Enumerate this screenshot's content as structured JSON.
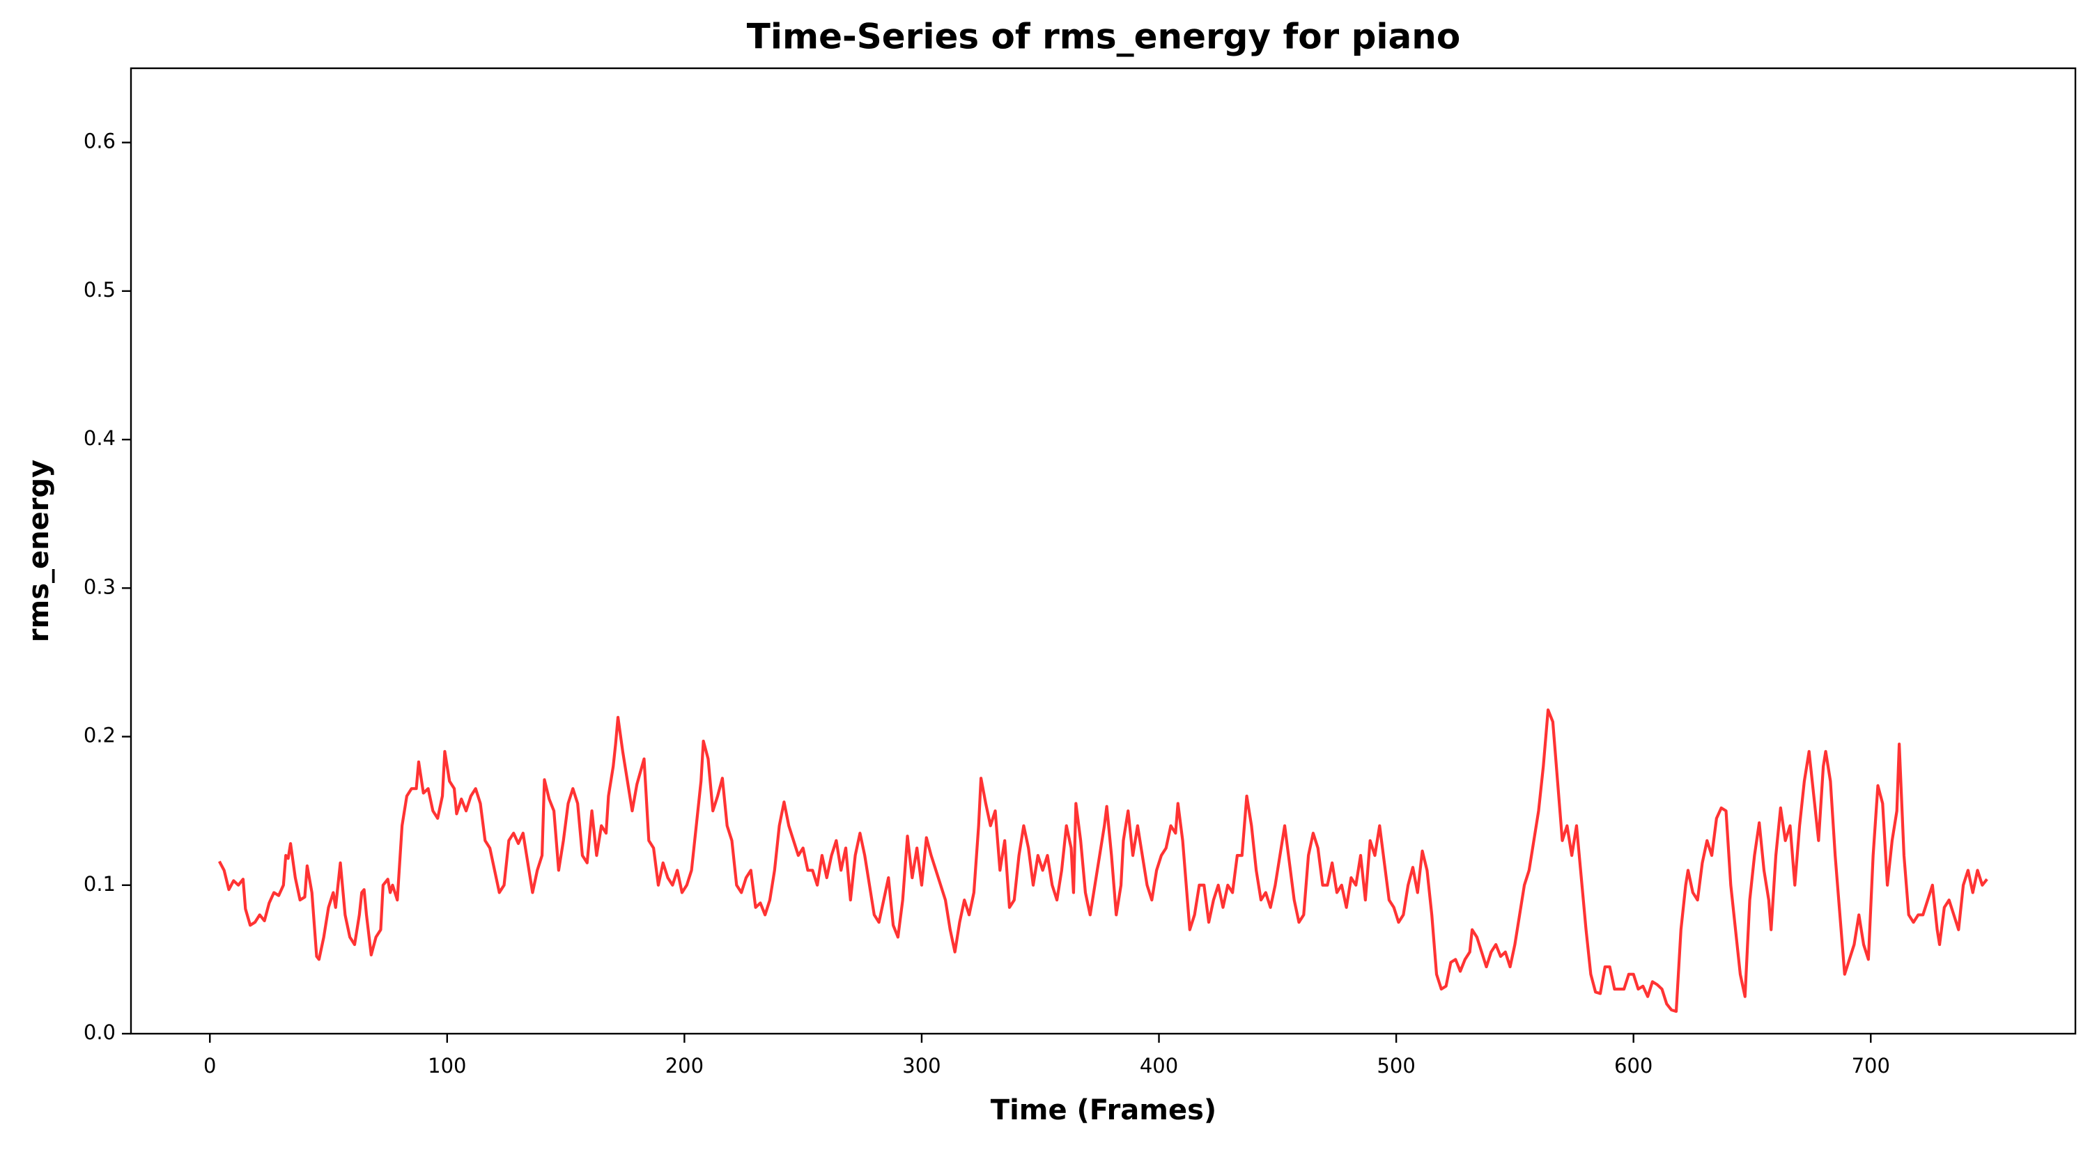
{
  "chart_data": {
    "type": "line",
    "title": "Time-Series of rms_energy for piano",
    "x_label": "Time (Frames)",
    "y_label": "rms_energy",
    "color": "#ff3333",
    "x": [
      4,
      6,
      8,
      10,
      12,
      14,
      15,
      17,
      19,
      21,
      23,
      25,
      27,
      29,
      31,
      32,
      33,
      34,
      36,
      38,
      40,
      41,
      43,
      45,
      46,
      48,
      50,
      52,
      53,
      54,
      55,
      57,
      59,
      61,
      63,
      64,
      65,
      66,
      68,
      70,
      72,
      73,
      75,
      76,
      77,
      79,
      81,
      83,
      85,
      87,
      88,
      90,
      92,
      94,
      96,
      98,
      99,
      101,
      103,
      104,
      106,
      108,
      110,
      112,
      114,
      116,
      118,
      120,
      122,
      124,
      126,
      128,
      130,
      132,
      134,
      136,
      138,
      140,
      141,
      143,
      145,
      147,
      149,
      151,
      153,
      155,
      157,
      159,
      161,
      163,
      165,
      167,
      168,
      170,
      171,
      172,
      174,
      176,
      178,
      180,
      183,
      185,
      187,
      189,
      191,
      193,
      195,
      197,
      199,
      201,
      203,
      205,
      207,
      208,
      210,
      212,
      214,
      216,
      218,
      220,
      222,
      224,
      226,
      228,
      230,
      232,
      234,
      236,
      238,
      240,
      242,
      244,
      246,
      248,
      250,
      252,
      254,
      256,
      258,
      260,
      262,
      264,
      266,
      268,
      270,
      272,
      274,
      276,
      278,
      280,
      282,
      284,
      286,
      288,
      290,
      292,
      294,
      296,
      298,
      300,
      302,
      304,
      306,
      308,
      310,
      312,
      314,
      316,
      318,
      320,
      322,
      324,
      325,
      327,
      329,
      331,
      333,
      335,
      337,
      339,
      341,
      343,
      345,
      347,
      349,
      351,
      353,
      355,
      357,
      359,
      361,
      363,
      364,
      365,
      367,
      369,
      371,
      373,
      375,
      377,
      378,
      380,
      382,
      384,
      385,
      387,
      389,
      391,
      393,
      395,
      397,
      399,
      401,
      403,
      405,
      407,
      408,
      410,
      412,
      413,
      415,
      417,
      419,
      421,
      423,
      425,
      427,
      429,
      431,
      433,
      435,
      437,
      439,
      441,
      443,
      445,
      447,
      449,
      451,
      453,
      455,
      457,
      459,
      461,
      463,
      465,
      467,
      469,
      471,
      473,
      475,
      477,
      479,
      481,
      483,
      485,
      487,
      489,
      491,
      493,
      495,
      497,
      499,
      501,
      503,
      505,
      507,
      509,
      511,
      513,
      515,
      517,
      519,
      521,
      523,
      525,
      527,
      529,
      531,
      532,
      534,
      536,
      538,
      540,
      542,
      544,
      546,
      548,
      550,
      552,
      554,
      556,
      558,
      560,
      562,
      564,
      566,
      568,
      570,
      572,
      574,
      576,
      578,
      580,
      582,
      584,
      586,
      588,
      590,
      592,
      594,
      596,
      598,
      600,
      602,
      604,
      606,
      608,
      610,
      612,
      614,
      616,
      618,
      620,
      622,
      623,
      625,
      627,
      629,
      631,
      633,
      635,
      637,
      639,
      641,
      643,
      645,
      647,
      649,
      651,
      653,
      655,
      657,
      658,
      660,
      662,
      664,
      666,
      668,
      670,
      672,
      674,
      676,
      678,
      680,
      681,
      683,
      685,
      687,
      689,
      691,
      693,
      695,
      697,
      699,
      701,
      703,
      705,
      707,
      709,
      711,
      712,
      714,
      716,
      718,
      720,
      722,
      724,
      726,
      728,
      729,
      731,
      733,
      735,
      737,
      739,
      741,
      743,
      745,
      747,
      749
    ],
    "values": [
      0.116,
      0.11,
      0.097,
      0.103,
      0.1,
      0.104,
      0.084,
      0.073,
      0.075,
      0.08,
      0.076,
      0.088,
      0.095,
      0.093,
      0.1,
      0.12,
      0.118,
      0.128,
      0.105,
      0.09,
      0.092,
      0.113,
      0.095,
      0.052,
      0.05,
      0.065,
      0.085,
      0.095,
      0.085,
      0.1,
      0.115,
      0.08,
      0.065,
      0.06,
      0.08,
      0.095,
      0.097,
      0.08,
      0.053,
      0.065,
      0.07,
      0.1,
      0.104,
      0.095,
      0.1,
      0.09,
      0.14,
      0.16,
      0.165,
      0.165,
      0.183,
      0.162,
      0.165,
      0.15,
      0.145,
      0.16,
      0.19,
      0.17,
      0.165,
      0.148,
      0.158,
      0.15,
      0.16,
      0.165,
      0.155,
      0.13,
      0.125,
      0.11,
      0.095,
      0.1,
      0.13,
      0.135,
      0.128,
      0.135,
      0.115,
      0.095,
      0.11,
      0.12,
      0.171,
      0.158,
      0.15,
      0.11,
      0.13,
      0.155,
      0.165,
      0.155,
      0.12,
      0.115,
      0.15,
      0.12,
      0.14,
      0.135,
      0.16,
      0.18,
      0.195,
      0.213,
      0.19,
      0.17,
      0.15,
      0.168,
      0.185,
      0.13,
      0.125,
      0.1,
      0.115,
      0.105,
      0.1,
      0.11,
      0.095,
      0.1,
      0.11,
      0.14,
      0.17,
      0.197,
      0.185,
      0.15,
      0.16,
      0.172,
      0.14,
      0.13,
      0.1,
      0.095,
      0.105,
      0.11,
      0.085,
      0.088,
      0.08,
      0.09,
      0.11,
      0.14,
      0.156,
      0.14,
      0.13,
      0.12,
      0.125,
      0.11,
      0.11,
      0.1,
      0.12,
      0.105,
      0.12,
      0.13,
      0.11,
      0.125,
      0.09,
      0.12,
      0.135,
      0.12,
      0.1,
      0.08,
      0.075,
      0.09,
      0.105,
      0.073,
      0.065,
      0.09,
      0.133,
      0.105,
      0.125,
      0.1,
      0.132,
      0.12,
      0.11,
      0.1,
      0.09,
      0.07,
      0.055,
      0.075,
      0.09,
      0.08,
      0.095,
      0.14,
      0.172,
      0.155,
      0.14,
      0.15,
      0.11,
      0.13,
      0.085,
      0.09,
      0.12,
      0.14,
      0.125,
      0.1,
      0.12,
      0.11,
      0.12,
      0.1,
      0.09,
      0.11,
      0.14,
      0.125,
      0.095,
      0.155,
      0.13,
      0.095,
      0.08,
      0.1,
      0.12,
      0.14,
      0.153,
      0.12,
      0.08,
      0.1,
      0.13,
      0.15,
      0.12,
      0.14,
      0.12,
      0.1,
      0.09,
      0.11,
      0.12,
      0.125,
      0.14,
      0.135,
      0.155,
      0.13,
      0.09,
      0.07,
      0.08,
      0.1,
      0.1,
      0.075,
      0.09,
      0.1,
      0.085,
      0.1,
      0.095,
      0.12,
      0.12,
      0.16,
      0.14,
      0.11,
      0.09,
      0.095,
      0.085,
      0.1,
      0.12,
      0.14,
      0.115,
      0.09,
      0.075,
      0.08,
      0.12,
      0.135,
      0.125,
      0.1,
      0.1,
      0.115,
      0.095,
      0.1,
      0.085,
      0.105,
      0.1,
      0.12,
      0.09,
      0.13,
      0.12,
      0.14,
      0.115,
      0.09,
      0.085,
      0.075,
      0.08,
      0.1,
      0.112,
      0.095,
      0.123,
      0.11,
      0.08,
      0.04,
      0.03,
      0.032,
      0.048,
      0.05,
      0.042,
      0.05,
      0.055,
      0.07,
      0.065,
      0.055,
      0.045,
      0.055,
      0.06,
      0.052,
      0.055,
      0.045,
      0.06,
      0.08,
      0.1,
      0.11,
      0.13,
      0.15,
      0.18,
      0.218,
      0.21,
      0.17,
      0.13,
      0.14,
      0.12,
      0.14,
      0.105,
      0.07,
      0.04,
      0.028,
      0.027,
      0.045,
      0.045,
      0.03,
      0.03,
      0.03,
      0.04,
      0.04,
      0.03,
      0.032,
      0.025,
      0.035,
      0.033,
      0.03,
      0.02,
      0.016,
      0.015,
      0.07,
      0.1,
      0.11,
      0.095,
      0.09,
      0.115,
      0.13,
      0.12,
      0.145,
      0.152,
      0.15,
      0.1,
      0.07,
      0.04,
      0.025,
      0.09,
      0.12,
      0.142,
      0.11,
      0.09,
      0.07,
      0.12,
      0.152,
      0.13,
      0.14,
      0.1,
      0.14,
      0.17,
      0.19,
      0.16,
      0.13,
      0.18,
      0.19,
      0.17,
      0.12,
      0.08,
      0.04,
      0.05,
      0.06,
      0.08,
      0.06,
      0.05,
      0.12,
      0.167,
      0.155,
      0.1,
      0.13,
      0.15,
      0.195,
      0.12,
      0.08,
      0.075,
      0.08,
      0.08,
      0.09,
      0.1,
      0.07,
      0.06,
      0.085,
      0.09,
      0.08,
      0.07,
      0.1,
      0.11,
      0.095,
      0.11,
      0.1,
      0.104
    ],
    "xlim": [
      -33.25,
      786.25
    ],
    "xticks": [
      0,
      100,
      200,
      300,
      400,
      500,
      600,
      700
    ],
    "ylim": [
      0,
      0.65
    ],
    "yticks": [
      {
        "value": 0,
        "label": "0.0"
      },
      0.1,
      0.2,
      0.3,
      0.4,
      0.5,
      0.6
    ]
  }
}
